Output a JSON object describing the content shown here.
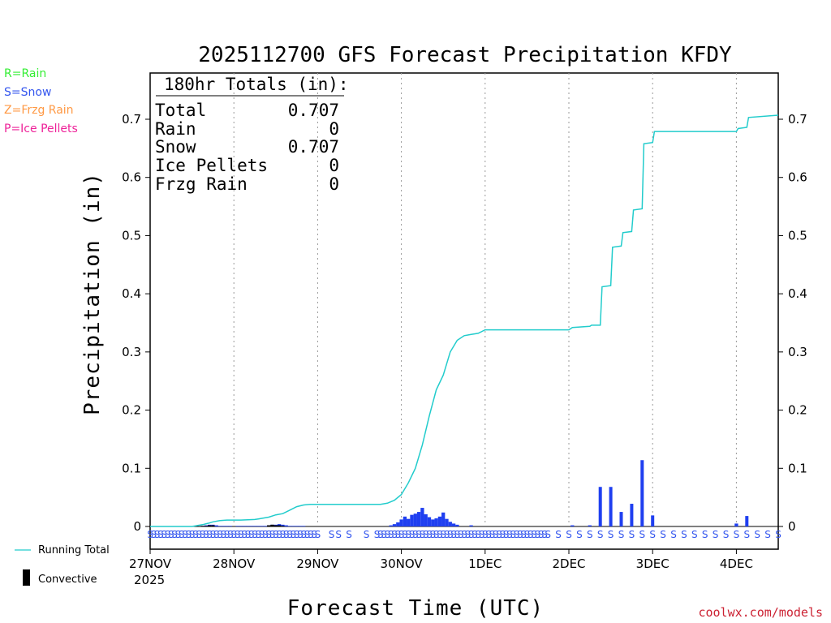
{
  "colors": {
    "rain": "#33ee33",
    "snow": "#3355ee",
    "frzg_rain": "#ff9944",
    "ice_pellets": "#ee2299",
    "running_total": "#22cccc",
    "snow_bar": "#1f3ff0",
    "convective": "#000000",
    "credit": "#cc2233",
    "grid": "#999999"
  },
  "legend": {
    "rain": "R=Rain",
    "snow": "S=Snow",
    "frzg_rain": "Z=Frzg Rain",
    "ice_pellets": "P=Ice Pellets",
    "running_total": "Running Total",
    "convective": "Convective"
  },
  "totals_box": {
    "header": "180hr Totals (in):",
    "rows": [
      {
        "label": "Total",
        "value": "0.707"
      },
      {
        "label": "Rain",
        "value": "0"
      },
      {
        "label": "Snow",
        "value": "0.707"
      },
      {
        "label": "Ice Pellets",
        "value": "0"
      },
      {
        "label": "Frzg Rain",
        "value": "0"
      }
    ]
  },
  "credit": "coolwx.com/models",
  "chart_data": {
    "type": "bar",
    "title": "2025112700 GFS Forecast Precipitation KFDY",
    "xlabel": "Forecast Time (UTC)",
    "ylabel": "Precipitation (in)",
    "year_label": "2025",
    "x_unit": "forecast hour",
    "xlim": [
      0,
      180
    ],
    "ylim": [
      0,
      0.78
    ],
    "yticks": [
      0,
      0.1,
      0.2,
      0.3,
      0.4,
      0.5,
      0.6,
      0.7
    ],
    "ytick_labels": [
      "0",
      "0.1",
      "0.2",
      "0.3",
      "0.4",
      "0.5",
      "0.6",
      "0.7"
    ],
    "xticks": [
      {
        "hour": 0,
        "label": "27NOV"
      },
      {
        "hour": 24,
        "label": "28NOV"
      },
      {
        "hour": 48,
        "label": "29NOV"
      },
      {
        "hour": 72,
        "label": "30NOV"
      },
      {
        "hour": 96,
        "label": "1DEC"
      },
      {
        "hour": 120,
        "label": "2DEC"
      },
      {
        "hour": 144,
        "label": "3DEC"
      },
      {
        "hour": 168,
        "label": "4DEC"
      }
    ],
    "grid": "vertical dotted at day boundaries",
    "series": [
      {
        "name": "Snow (hourly)",
        "kind": "bar",
        "x": [
          15,
          16,
          17,
          18,
          19,
          20,
          21,
          22,
          23,
          25,
          26,
          27,
          28,
          29,
          30,
          31,
          32,
          33,
          34,
          35,
          36,
          37,
          38,
          39,
          40,
          41,
          42,
          43,
          44,
          69,
          70,
          71,
          72,
          73,
          74,
          75,
          76,
          77,
          78,
          79,
          80,
          81,
          82,
          83,
          84,
          85,
          86,
          87,
          88,
          92,
          121,
          126,
          129,
          132,
          135,
          138,
          141,
          144,
          168,
          171
        ],
        "values": [
          0.001,
          0.002,
          0.003,
          0.003,
          0.002,
          0.001,
          0.001,
          0.001,
          0.001,
          0.001,
          0.001,
          0.001,
          0.001,
          0.001,
          0.001,
          0.001,
          0.001,
          0.001,
          0.002,
          0.003,
          0.003,
          0.004,
          0.003,
          0.002,
          0.001,
          0.001,
          0.001,
          0.001,
          0.001,
          0.002,
          0.004,
          0.007,
          0.012,
          0.017,
          0.013,
          0.02,
          0.022,
          0.025,
          0.032,
          0.021,
          0.016,
          0.012,
          0.014,
          0.017,
          0.024,
          0.013,
          0.008,
          0.005,
          0.003,
          0.002,
          0.002,
          0.002,
          0.068,
          0.068,
          0.025,
          0.039,
          0.114,
          0.019,
          0.005,
          0.018
        ]
      },
      {
        "name": "Convective",
        "kind": "bar",
        "x": [
          15,
          16,
          17,
          18,
          34,
          35,
          36,
          37,
          38
        ],
        "values": [
          0.001,
          0.001,
          0.002,
          0.002,
          0.002,
          0.003,
          0.002,
          0.002,
          0.001
        ]
      },
      {
        "name": "Running Total",
        "kind": "line",
        "x": [
          0,
          12,
          13,
          15,
          17,
          18,
          20,
          22,
          24,
          26,
          30,
          31,
          34,
          36,
          38,
          40,
          42,
          44,
          46,
          48,
          60,
          66,
          68,
          70,
          72,
          74,
          76,
          78,
          80,
          82,
          84,
          85,
          86,
          88,
          90,
          92,
          94,
          96,
          120,
          121,
          126,
          126.5,
          129,
          129.5,
          132,
          132.5,
          135,
          135.5,
          138,
          138.5,
          141,
          141.5,
          144,
          144.5,
          168,
          168.5,
          171,
          171.5,
          180
        ],
        "values": [
          0,
          0,
          0.001,
          0.003,
          0.006,
          0.008,
          0.01,
          0.011,
          0.011,
          0.011,
          0.012,
          0.013,
          0.016,
          0.02,
          0.022,
          0.028,
          0.034,
          0.037,
          0.038,
          0.038,
          0.038,
          0.038,
          0.04,
          0.045,
          0.055,
          0.075,
          0.1,
          0.14,
          0.19,
          0.235,
          0.26,
          0.28,
          0.3,
          0.32,
          0.328,
          0.33,
          0.332,
          0.338,
          0.338,
          0.342,
          0.344,
          0.346,
          0.346,
          0.412,
          0.414,
          0.48,
          0.482,
          0.505,
          0.507,
          0.544,
          0.546,
          0.658,
          0.66,
          0.679,
          0.679,
          0.684,
          0.686,
          0.703,
          0.707
        ]
      }
    ],
    "precip_type_row": {
      "x": [
        0,
        1,
        2,
        3,
        4,
        5,
        6,
        7,
        8,
        9,
        10,
        11,
        12,
        13,
        14,
        15,
        16,
        17,
        18,
        19,
        20,
        21,
        22,
        23,
        24,
        25,
        26,
        27,
        28,
        29,
        30,
        31,
        32,
        33,
        34,
        35,
        36,
        37,
        38,
        39,
        40,
        41,
        42,
        43,
        44,
        45,
        46,
        47,
        48,
        52,
        54,
        57,
        62,
        65,
        66,
        67,
        68,
        69,
        70,
        71,
        72,
        73,
        74,
        75,
        76,
        77,
        78,
        79,
        80,
        81,
        82,
        83,
        84,
        85,
        86,
        87,
        88,
        89,
        90,
        91,
        92,
        93,
        94,
        95,
        96,
        97,
        98,
        99,
        100,
        101,
        102,
        103,
        104,
        105,
        106,
        107,
        108,
        109,
        110,
        111,
        112,
        113,
        114,
        117,
        120,
        123,
        126,
        129,
        132,
        135,
        138,
        141,
        144,
        147,
        150,
        153,
        156,
        159,
        162,
        165,
        168,
        171,
        174,
        177,
        180
      ],
      "label": "S"
    }
  }
}
